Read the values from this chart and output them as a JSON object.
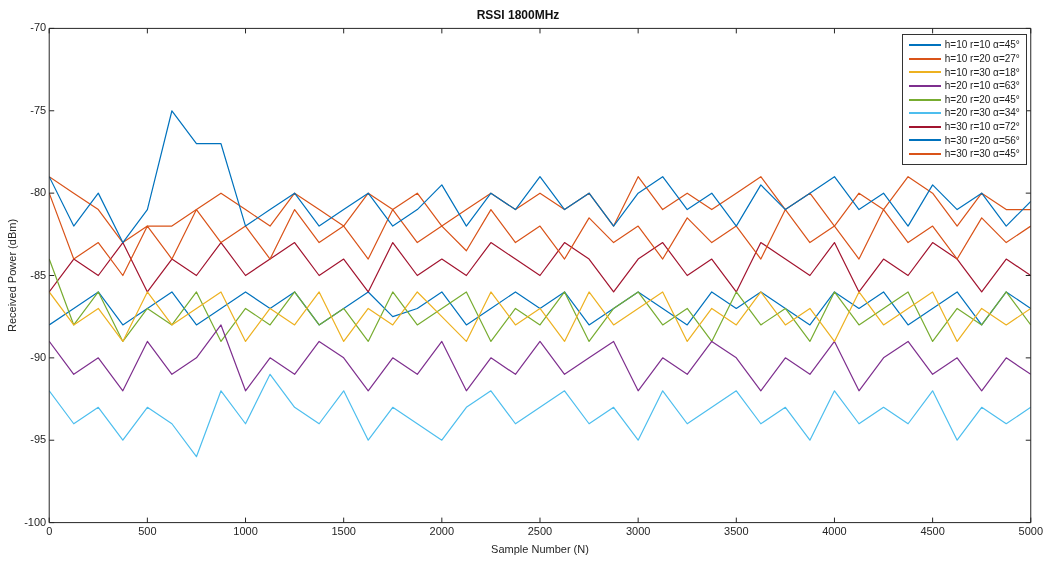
{
  "chart_data": {
    "type": "line",
    "title": "RSSI 1800MHz",
    "xlabel": "Sample Number (N)",
    "ylabel": "Received Power (dBm)",
    "x": [
      0,
      125,
      250,
      375,
      500,
      625,
      750,
      875,
      1000,
      1125,
      1250,
      1375,
      1500,
      1625,
      1750,
      1875,
      2000,
      2125,
      2250,
      2375,
      2500,
      2625,
      2750,
      2875,
      3000,
      3125,
      3250,
      3375,
      3500,
      3625,
      3750,
      3875,
      4000,
      4125,
      4250,
      4375,
      4500,
      4625,
      4750,
      4875,
      5000
    ],
    "xlim": [
      0,
      5000
    ],
    "xticks": [
      0,
      500,
      1000,
      1500,
      2000,
      2500,
      3000,
      3500,
      4000,
      4500,
      5000
    ],
    "ylim": [
      -100,
      -70
    ],
    "yticks": [
      -100,
      -95,
      -90,
      -85,
      -80,
      -75,
      -70
    ],
    "grid": false,
    "legend": "top right",
    "marker": "none",
    "line_style": "solid",
    "series": [
      {
        "name": "h=10 r=10 α=45°",
        "color": "#0072bd",
        "values": [
          -79,
          -82,
          -80,
          -83,
          -81,
          -75,
          -77,
          -77,
          -82,
          -81,
          -80,
          -82,
          -81,
          -80,
          -82,
          -81,
          -79.5,
          -82,
          -80,
          -81,
          -79,
          -81,
          -80,
          -82,
          -80,
          -79,
          -81,
          -80,
          -82,
          -79.5,
          -81,
          -80,
          -79,
          -81,
          -80,
          -82,
          -79.5,
          -81,
          -80,
          -82,
          -80.5
        ]
      },
      {
        "name": "h=10 r=20 α=27°",
        "color": "#d95319",
        "values": [
          -80,
          -84,
          -83,
          -85,
          -82,
          -84,
          -81,
          -83,
          -82,
          -84,
          -81,
          -83,
          -82,
          -84,
          -81,
          -83,
          -82,
          -83.5,
          -81,
          -83,
          -82,
          -84,
          -81.5,
          -83,
          -82,
          -84,
          -81.5,
          -83,
          -82,
          -84,
          -81,
          -83,
          -82,
          -84,
          -81,
          -83,
          -82,
          -84,
          -81.5,
          -83,
          -82
        ]
      },
      {
        "name": "h=10 r=30 α=18°",
        "color": "#edb120",
        "values": [
          -86,
          -88,
          -87,
          -89,
          -86,
          -88,
          -87,
          -86,
          -89,
          -87,
          -88,
          -86,
          -89,
          -87,
          -88,
          -86,
          -87.5,
          -89,
          -86,
          -88,
          -87,
          -89,
          -86,
          -88,
          -87,
          -86,
          -89,
          -87,
          -88,
          -86,
          -88,
          -87,
          -89,
          -86,
          -88,
          -87,
          -86,
          -89,
          -87,
          -88,
          -87
        ]
      },
      {
        "name": "h=20 r=10 α=63°",
        "color": "#7e2f8e",
        "values": [
          -89,
          -91,
          -90,
          -92,
          -89,
          -91,
          -90,
          -88,
          -92,
          -90,
          -91,
          -89,
          -90,
          -92,
          -90,
          -91,
          -89,
          -92,
          -90,
          -91,
          -89,
          -91,
          -90,
          -89,
          -92,
          -90,
          -91,
          -89,
          -90,
          -92,
          -90,
          -91,
          -89,
          -92,
          -90,
          -89,
          -91,
          -90,
          -92,
          -90,
          -91
        ]
      },
      {
        "name": "h=20 r=20 α=45°",
        "color": "#77ac30",
        "values": [
          -84,
          -88,
          -86,
          -89,
          -87,
          -88,
          -86,
          -89,
          -87,
          -88,
          -86,
          -88,
          -87,
          -89,
          -86,
          -88,
          -87,
          -86,
          -89,
          -87,
          -88,
          -86,
          -89,
          -87,
          -86,
          -88,
          -87,
          -89,
          -86,
          -88,
          -87,
          -89,
          -86,
          -88,
          -87,
          -86,
          -89,
          -87,
          -88,
          -86,
          -88
        ]
      },
      {
        "name": "h=20 r=30 α=34°",
        "color": "#4dbeee",
        "values": [
          -92,
          -94,
          -93,
          -95,
          -93,
          -94,
          -96,
          -92,
          -94,
          -91,
          -93,
          -94,
          -92,
          -95,
          -93,
          -94,
          -95,
          -93,
          -92,
          -94,
          -93,
          -92,
          -94,
          -93,
          -95,
          -92,
          -94,
          -93,
          -92,
          -94,
          -93,
          -95,
          -92,
          -94,
          -93,
          -94,
          -92,
          -95,
          -93,
          -94,
          -93
        ]
      },
      {
        "name": "h=30 r=10 α=72°",
        "color": "#a2142f",
        "values": [
          -86,
          -84,
          -85,
          -83,
          -86,
          -84,
          -85,
          -83,
          -85,
          -84,
          -83,
          -85,
          -84,
          -86,
          -83,
          -85,
          -84,
          -85,
          -83,
          -84,
          -85,
          -83,
          -84,
          -86,
          -84,
          -83,
          -85,
          -84,
          -86,
          -83,
          -84,
          -85,
          -83,
          -86,
          -84,
          -85,
          -83,
          -84,
          -86,
          -84,
          -85
        ]
      },
      {
        "name": "h=30 r=20 α=56°",
        "color": "#0072bd",
        "values": [
          -88,
          -87,
          -86,
          -88,
          -87,
          -86,
          -88,
          -87,
          -86,
          -87,
          -86,
          -88,
          -87,
          -86,
          -87.5,
          -87,
          -86,
          -88,
          -87,
          -86,
          -87,
          -86,
          -88,
          -87,
          -86,
          -87,
          -88,
          -86,
          -87,
          -86,
          -87,
          -88,
          -86,
          -87,
          -86,
          -88,
          -87,
          -86,
          -88,
          -86,
          -87
        ]
      },
      {
        "name": "h=30 r=30 α=45°",
        "color": "#d95319",
        "values": [
          -79,
          -80,
          -81,
          -83,
          -82,
          -82,
          -81,
          -80,
          -81,
          -82,
          -80,
          -81,
          -82,
          -80,
          -81,
          -80,
          -82,
          -81,
          -80,
          -81,
          -80,
          -81,
          -80,
          -82,
          -79,
          -81,
          -80,
          -81,
          -80,
          -79,
          -81,
          -80,
          -82,
          -80,
          -81,
          -79,
          -80,
          -82,
          -80,
          -81,
          -81
        ]
      }
    ]
  }
}
